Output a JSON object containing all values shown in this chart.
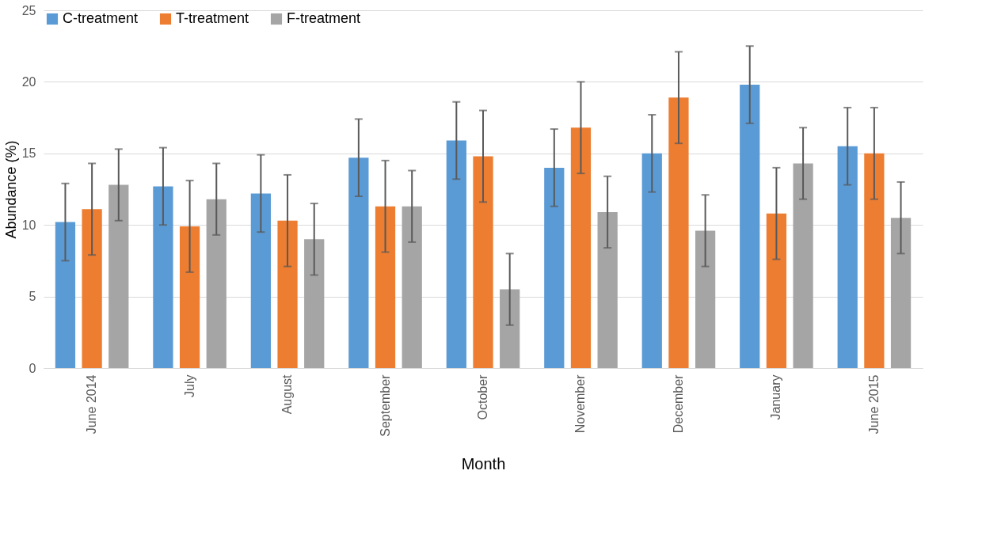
{
  "chart_data": {
    "type": "bar",
    "xlabel": "Month",
    "ylabel": "Abundance (%)",
    "categories": [
      "June 2014",
      "July",
      "August",
      "September",
      "October",
      "November",
      "December",
      "January",
      "June 2015"
    ],
    "series": [
      {
        "name": "C-treatment",
        "color": "#5b9bd5",
        "values": [
          10.2,
          12.7,
          12.2,
          14.7,
          15.9,
          14.0,
          15.0,
          19.8,
          15.5
        ],
        "errors": [
          2.7,
          2.7,
          2.7,
          2.7,
          2.7,
          2.7,
          2.7,
          2.7,
          2.7
        ]
      },
      {
        "name": "T-treatment",
        "color": "#ed7d31",
        "values": [
          11.1,
          9.9,
          10.3,
          11.3,
          14.8,
          16.8,
          18.9,
          10.8,
          15.0
        ],
        "errors": [
          3.2,
          3.2,
          3.2,
          3.2,
          3.2,
          3.2,
          3.2,
          3.2,
          3.2
        ]
      },
      {
        "name": "F-treatment",
        "color": "#a5a5a5",
        "values": [
          12.8,
          11.8,
          9.0,
          11.3,
          5.5,
          10.9,
          9.6,
          14.3,
          10.5
        ],
        "errors": [
          2.5,
          2.5,
          2.5,
          2.5,
          2.5,
          2.5,
          2.5,
          2.5,
          2.5
        ]
      }
    ],
    "ylim": [
      0,
      25
    ],
    "yticks": [
      0,
      5,
      10,
      15,
      20,
      25
    ],
    "grid": "y",
    "legend": "top left"
  }
}
